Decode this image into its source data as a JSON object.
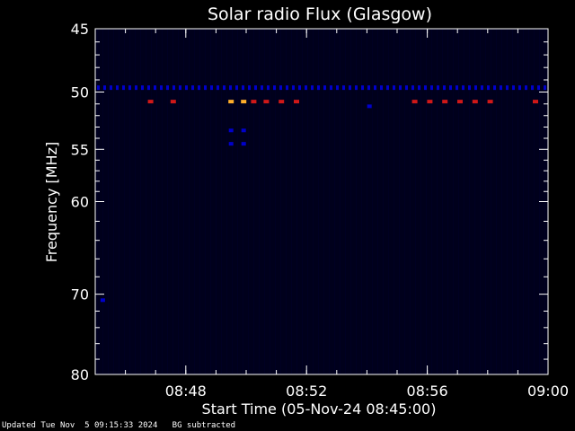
{
  "chart_data": {
    "type": "heatmap",
    "title": "Solar radio Flux (Glasgow)",
    "xlabel": "Start Time (05-Nov-24 08:45:00)",
    "ylabel": "Frequency [MHz]",
    "xlim": [
      "08:45:00",
      "09:00:00"
    ],
    "ylim": [
      80,
      45
    ],
    "y_scale": "log",
    "xticks": [
      "08:48",
      "08:52",
      "08:56",
      "09:00"
    ],
    "yticks": [
      45,
      50,
      55,
      60,
      70,
      80
    ],
    "colors": {
      "background": "#000000",
      "field": "#00001c",
      "low": "#0000cc",
      "mid": "#d01818",
      "high": "#ffae2a"
    },
    "features": [
      {
        "kind": "band",
        "frequency_mhz": 49.6,
        "time_start": "08:45:00",
        "time_end": "09:00:00",
        "level": "low"
      },
      {
        "kind": "burst",
        "frequency_mhz": 50.8,
        "time": "08:46:50",
        "level": "mid"
      },
      {
        "kind": "burst",
        "frequency_mhz": 50.8,
        "time": "08:47:35",
        "level": "mid"
      },
      {
        "kind": "burst",
        "frequency_mhz": 50.8,
        "time": "08:49:30",
        "level": "high"
      },
      {
        "kind": "burst",
        "frequency_mhz": 50.8,
        "time": "08:49:55",
        "level": "high"
      },
      {
        "kind": "burst",
        "frequency_mhz": 50.8,
        "time": "08:50:15",
        "level": "mid"
      },
      {
        "kind": "burst",
        "frequency_mhz": 50.8,
        "time": "08:50:40",
        "level": "mid"
      },
      {
        "kind": "burst",
        "frequency_mhz": 50.8,
        "time": "08:51:10",
        "level": "mid"
      },
      {
        "kind": "burst",
        "frequency_mhz": 50.8,
        "time": "08:51:40",
        "level": "mid"
      },
      {
        "kind": "burst",
        "frequency_mhz": 50.8,
        "time": "08:55:35",
        "level": "mid"
      },
      {
        "kind": "burst",
        "frequency_mhz": 50.8,
        "time": "08:56:05",
        "level": "mid"
      },
      {
        "kind": "burst",
        "frequency_mhz": 50.8,
        "time": "08:56:35",
        "level": "mid"
      },
      {
        "kind": "burst",
        "frequency_mhz": 50.8,
        "time": "08:57:05",
        "level": "mid"
      },
      {
        "kind": "burst",
        "frequency_mhz": 50.8,
        "time": "08:57:35",
        "level": "mid"
      },
      {
        "kind": "burst",
        "frequency_mhz": 50.8,
        "time": "08:58:05",
        "level": "mid"
      },
      {
        "kind": "burst",
        "frequency_mhz": 50.8,
        "time": "08:59:35",
        "level": "mid"
      },
      {
        "kind": "burst",
        "frequency_mhz": 53.3,
        "time": "08:49:30",
        "level": "low"
      },
      {
        "kind": "burst",
        "frequency_mhz": 53.3,
        "time": "08:49:55",
        "level": "low"
      },
      {
        "kind": "burst",
        "frequency_mhz": 54.5,
        "time": "08:49:30",
        "level": "low"
      },
      {
        "kind": "burst",
        "frequency_mhz": 54.5,
        "time": "08:49:55",
        "level": "low"
      },
      {
        "kind": "burst",
        "frequency_mhz": 51.2,
        "time": "08:54:05",
        "level": "low"
      },
      {
        "kind": "burst",
        "frequency_mhz": 70.7,
        "time": "08:45:15",
        "level": "low"
      }
    ]
  },
  "footer": {
    "updated": "Updated Tue Nov  5 09:15:33 2024",
    "bg_note": "BG subtracted"
  }
}
